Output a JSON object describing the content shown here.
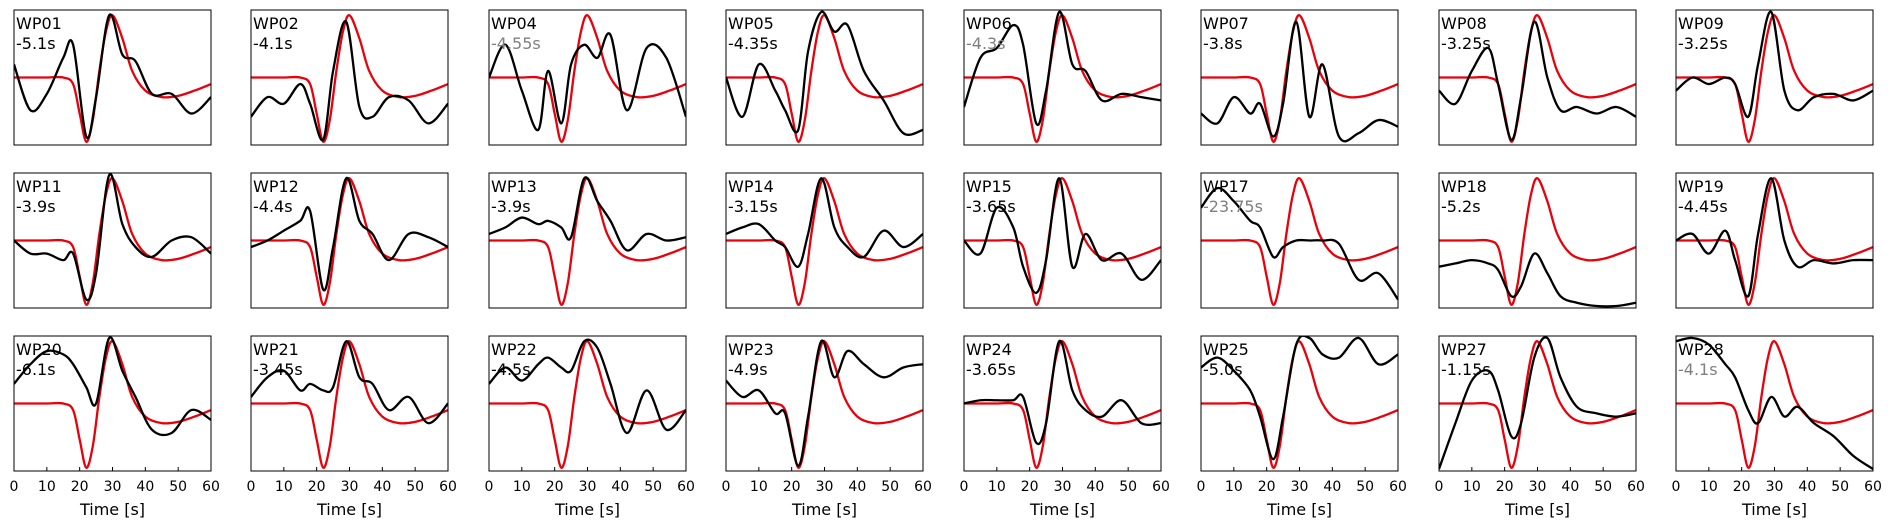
{
  "chart_data": {
    "type": "line",
    "layout": "3 rows x 8 columns of small multiples",
    "x_axis": {
      "label": "Time [s]",
      "range": [
        0,
        60
      ],
      "ticks": [
        0,
        10,
        20,
        30,
        40,
        50,
        60
      ]
    },
    "y_axis": {
      "visible": false,
      "range": [
        -1,
        1
      ]
    },
    "grid": false,
    "colors": {
      "reference": "#e8000b",
      "observed": "#000000",
      "faded_shift": "#808080"
    },
    "reference_waveform": {
      "color": "red",
      "x": [
        0,
        5,
        10,
        15,
        18,
        20,
        22,
        24,
        26,
        28,
        30,
        33,
        36,
        40,
        45,
        50,
        55,
        60
      ],
      "y": [
        0.0,
        0.0,
        0.0,
        0.0,
        -0.1,
        -0.55,
        -0.98,
        -0.65,
        0.1,
        0.7,
        0.95,
        0.6,
        0.1,
        -0.2,
        -0.3,
        -0.28,
        -0.2,
        -0.1
      ]
    },
    "panels": [
      {
        "name": "WP01",
        "shift": "-5.1s",
        "faded": false,
        "y": [
          0.2,
          -0.5,
          -0.25,
          0.3,
          0.5,
          -0.9,
          -0.3,
          0.95,
          0.35,
          0.25,
          -0.25,
          -0.25,
          -0.55,
          -0.3
        ]
      },
      {
        "name": "WP02",
        "shift": "-4.1s",
        "faded": false,
        "y": [
          -0.6,
          -0.3,
          -0.4,
          -0.1,
          -0.4,
          -0.95,
          0.1,
          0.85,
          -0.45,
          -0.6,
          -0.3,
          -0.35,
          -0.7,
          -0.4
        ]
      },
      {
        "name": "WP04",
        "shift": "-4.55s",
        "faded": true,
        "y": [
          0.0,
          0.5,
          -0.2,
          -0.8,
          0.1,
          -0.7,
          0.2,
          0.5,
          0.3,
          0.65,
          -0.5,
          0.45,
          0.3,
          -0.6
        ]
      },
      {
        "name": "WP05",
        "shift": "-4.35s",
        "faded": false,
        "y": [
          0.0,
          -0.6,
          0.2,
          -0.2,
          -0.5,
          -0.8,
          0.4,
          1.0,
          0.7,
          0.8,
          0.1,
          -0.35,
          -0.85,
          -0.8
        ]
      },
      {
        "name": "WP06",
        "shift": "-4.3s",
        "faded": true,
        "y": [
          -0.45,
          0.3,
          0.45,
          0.8,
          0.5,
          -0.7,
          -0.2,
          1.0,
          0.2,
          0.1,
          -0.35,
          -0.25,
          -0.3,
          -0.35
        ]
      },
      {
        "name": "WP07",
        "shift": "-3.8s",
        "faded": false,
        "y": [
          -0.55,
          -0.7,
          -0.3,
          -0.55,
          -0.4,
          -0.9,
          -0.4,
          0.85,
          -0.6,
          0.2,
          -0.9,
          -0.85,
          -0.65,
          -0.75
        ]
      },
      {
        "name": "WP08",
        "shift": "-3.25s",
        "faded": false,
        "y": [
          -0.2,
          -0.4,
          0.1,
          0.45,
          -0.1,
          -0.95,
          -0.3,
          0.85,
          0.0,
          -0.5,
          -0.45,
          -0.55,
          -0.45,
          -0.6
        ]
      },
      {
        "name": "WP09",
        "shift": "-3.25s",
        "faded": false,
        "y": [
          -0.2,
          0.0,
          -0.1,
          0.0,
          -0.1,
          -0.6,
          0.2,
          1.0,
          -0.2,
          -0.5,
          -0.3,
          -0.25,
          -0.35,
          -0.2
        ]
      },
      {
        "name": "WP11",
        "shift": "-3.9s",
        "faded": false,
        "y": [
          0.0,
          -0.2,
          -0.2,
          -0.3,
          -0.2,
          -0.9,
          -0.5,
          1.0,
          0.25,
          -0.1,
          -0.25,
          0.0,
          0.05,
          -0.2
        ]
      },
      {
        "name": "WP12",
        "shift": "-4.4s",
        "faded": false,
        "y": [
          -0.1,
          0.0,
          0.15,
          0.3,
          0.45,
          -0.75,
          -0.1,
          0.95,
          0.3,
          0.1,
          -0.3,
          0.1,
          0.05,
          -0.1
        ]
      },
      {
        "name": "WP13",
        "shift": "-3.9s",
        "faded": false,
        "y": [
          0.1,
          0.2,
          0.35,
          0.25,
          0.3,
          0.2,
          0.05,
          0.95,
          0.6,
          0.3,
          -0.15,
          0.1,
          0.0,
          0.05
        ]
      },
      {
        "name": "WP14",
        "shift": "-3.15s",
        "faded": false,
        "y": [
          0.1,
          0.2,
          0.25,
          0.0,
          -0.1,
          -0.4,
          0.1,
          0.95,
          0.2,
          -0.1,
          -0.25,
          0.15,
          -0.1,
          0.1
        ]
      },
      {
        "name": "WP15",
        "shift": "-3.65s",
        "faded": false,
        "y": [
          0.0,
          -0.2,
          0.5,
          0.2,
          -0.4,
          -0.8,
          -0.3,
          0.95,
          -0.4,
          0.1,
          -0.3,
          -0.2,
          -0.6,
          -0.3
        ]
      },
      {
        "name": "WP17",
        "shift": "-23.75s",
        "faded": true,
        "y": [
          0.5,
          0.8,
          0.6,
          0.3,
          0.2,
          -0.25,
          -0.1,
          0.0,
          0.0,
          0.0,
          -0.05,
          -0.6,
          -0.5,
          -0.9
        ]
      },
      {
        "name": "WP18",
        "shift": "-5.2s",
        "faded": false,
        "y": [
          -0.4,
          -0.35,
          -0.3,
          -0.35,
          -0.45,
          -0.85,
          -0.7,
          -0.2,
          -0.5,
          -0.85,
          -0.95,
          -1.0,
          -1.0,
          -0.95
        ]
      },
      {
        "name": "WP19",
        "shift": "-4.45s",
        "faded": false,
        "y": [
          0.0,
          0.1,
          -0.2,
          0.15,
          -0.3,
          -0.85,
          0.1,
          0.95,
          0.0,
          -0.4,
          -0.3,
          -0.35,
          -0.3,
          -0.3
        ]
      },
      {
        "name": "WP20",
        "shift": "-6.1s",
        "faded": false,
        "y": [
          0.3,
          0.6,
          0.8,
          0.75,
          0.6,
          0.25,
          0.0,
          1.0,
          0.5,
          0.1,
          -0.4,
          -0.45,
          -0.1,
          -0.25
        ]
      },
      {
        "name": "WP21",
        "shift": "-3.45s",
        "faded": false,
        "y": [
          0.1,
          0.4,
          0.5,
          0.2,
          0.3,
          0.2,
          0.25,
          0.95,
          0.4,
          0.3,
          -0.1,
          0.1,
          -0.3,
          0.0
        ]
      },
      {
        "name": "WP22",
        "shift": "-4.5s",
        "faded": false,
        "y": [
          0.3,
          0.55,
          0.35,
          0.6,
          0.7,
          0.55,
          0.5,
          0.95,
          0.85,
          0.3,
          -0.45,
          0.2,
          -0.4,
          -0.1
        ]
      },
      {
        "name": "WP23",
        "shift": "-4.9s",
        "faded": false,
        "y": [
          0.35,
          0.1,
          0.2,
          -0.15,
          -0.15,
          -0.95,
          -0.2,
          0.95,
          0.4,
          0.8,
          0.6,
          0.4,
          0.55,
          0.6
        ]
      },
      {
        "name": "WP24",
        "shift": "-3.65s",
        "faded": false,
        "y": [
          0.0,
          0.05,
          0.05,
          0.05,
          0.1,
          -0.6,
          -0.3,
          0.95,
          0.2,
          -0.1,
          -0.2,
          0.05,
          -0.3,
          -0.3
        ]
      },
      {
        "name": "WP25",
        "shift": "-5.0s",
        "faded": false,
        "y": [
          0.55,
          0.7,
          0.5,
          0.2,
          -0.2,
          -0.85,
          -0.2,
          0.9,
          1.0,
          0.75,
          0.7,
          1.0,
          0.6,
          0.75
        ]
      },
      {
        "name": "WP27",
        "shift": "-1.15s",
        "faded": false,
        "y": [
          -1.0,
          -0.3,
          0.35,
          0.5,
          0.2,
          -0.5,
          -0.3,
          0.7,
          1.0,
          0.4,
          -0.05,
          -0.15,
          -0.2,
          -0.15
        ]
      },
      {
        "name": "WP28",
        "shift": "-4.1s",
        "faded": true,
        "y": [
          0.95,
          1.0,
          0.9,
          0.6,
          0.4,
          -0.1,
          -0.3,
          0.1,
          -0.2,
          -0.05,
          -0.3,
          -0.5,
          -0.8,
          -1.0
        ]
      }
    ]
  }
}
